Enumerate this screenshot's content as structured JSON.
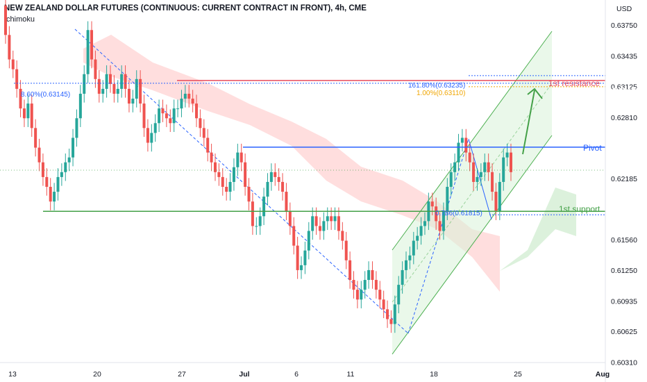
{
  "header": {
    "title": "NEW ZEALAND DOLLAR FUTURES (CONTINUOUS: CURRENT CONTRACT IN FRONT), 4h, CME",
    "indicator": "Ichimoku"
  },
  "axis": {
    "currency": "USD",
    "y_ticks": [
      "0.63750",
      "0.63435",
      "0.63125",
      "0.62810",
      "0.62185",
      "0.61560",
      "0.61250",
      "0.60935",
      "0.60625",
      "0.60310"
    ],
    "x_ticks": [
      "13",
      "20",
      "27",
      "Jul",
      "6",
      "11",
      "18",
      "25",
      "Aug"
    ]
  },
  "levels": {
    "resistance": {
      "label": "1st resistance",
      "price": "0.63185",
      "color": "#e84a5a"
    },
    "pivot": {
      "label": "Pivot",
      "price": "0.62505",
      "color": "#2962ff"
    },
    "support": {
      "label": "1st support",
      "price": "0.61850",
      "color": "#43a047"
    }
  },
  "fib_labels": {
    "left": "8.60%(0.63145)",
    "ext": "161.80%(0.63235)",
    "ret": "0.786(0.61815)",
    "orange": "1.00%(0.63110)"
  },
  "colors": {
    "bull": "#26a69a",
    "bear": "#ef5350",
    "cloud": "#ffd6d6",
    "cloud_green": "#d8f0d8",
    "channel": "#4caf50"
  },
  "chart_data": {
    "type": "candlestick",
    "title": "NEW ZEALAND DOLLAR FUTURES (CONTINUOUS: CURRENT CONTRACT IN FRONT), 4h, CME",
    "xlabel": "",
    "ylabel": "USD",
    "ylim": [
      0.6025,
      0.6395
    ],
    "grid": false,
    "close_series": [
      0.6365,
      0.634,
      0.633,
      0.631,
      0.629,
      0.628,
      0.6295,
      0.627,
      0.625,
      0.6235,
      0.622,
      0.621,
      0.6195,
      0.6205,
      0.622,
      0.6225,
      0.6235,
      0.624,
      0.626,
      0.628,
      0.6305,
      0.6325,
      0.637,
      0.634,
      0.632,
      0.6305,
      0.631,
      0.6325,
      0.6315,
      0.6305,
      0.631,
      0.6325,
      0.631,
      0.6295,
      0.63,
      0.632,
      0.6295,
      0.627,
      0.6255,
      0.6265,
      0.6275,
      0.629,
      0.6285,
      0.628,
      0.6275,
      0.629,
      0.629,
      0.63,
      0.6305,
      0.63,
      0.6295,
      0.628,
      0.627,
      0.626,
      0.6245,
      0.6235,
      0.6225,
      0.622,
      0.621,
      0.6205,
      0.6215,
      0.623,
      0.6245,
      0.6235,
      0.621,
      0.6195,
      0.617,
      0.617,
      0.618,
      0.62,
      0.6215,
      0.6225,
      0.622,
      0.6215,
      0.6205,
      0.6185,
      0.617,
      0.615,
      0.6125,
      0.613,
      0.6145,
      0.6165,
      0.618,
      0.617,
      0.6165,
      0.6175,
      0.618,
      0.6175,
      0.618,
      0.6165,
      0.6155,
      0.6135,
      0.6115,
      0.6105,
      0.6095,
      0.6105,
      0.6115,
      0.6125,
      0.6115,
      0.6105,
      0.6095,
      0.6085,
      0.6075,
      0.607,
      0.609,
      0.611,
      0.6125,
      0.6135,
      0.614,
      0.6155,
      0.616,
      0.617,
      0.6175,
      0.6195,
      0.619,
      0.6175,
      0.6165,
      0.6185,
      0.621,
      0.6225,
      0.6235,
      0.6255,
      0.626,
      0.6245,
      0.6235,
      0.6215,
      0.622,
      0.6225,
      0.6235,
      0.6225,
      0.6205,
      0.6185,
      0.6215,
      0.624,
      0.6245,
      0.6225
    ],
    "annotations": [
      "1st resistance 0.63185",
      "Pivot 0.62505",
      "1st support 0.61850"
    ]
  }
}
